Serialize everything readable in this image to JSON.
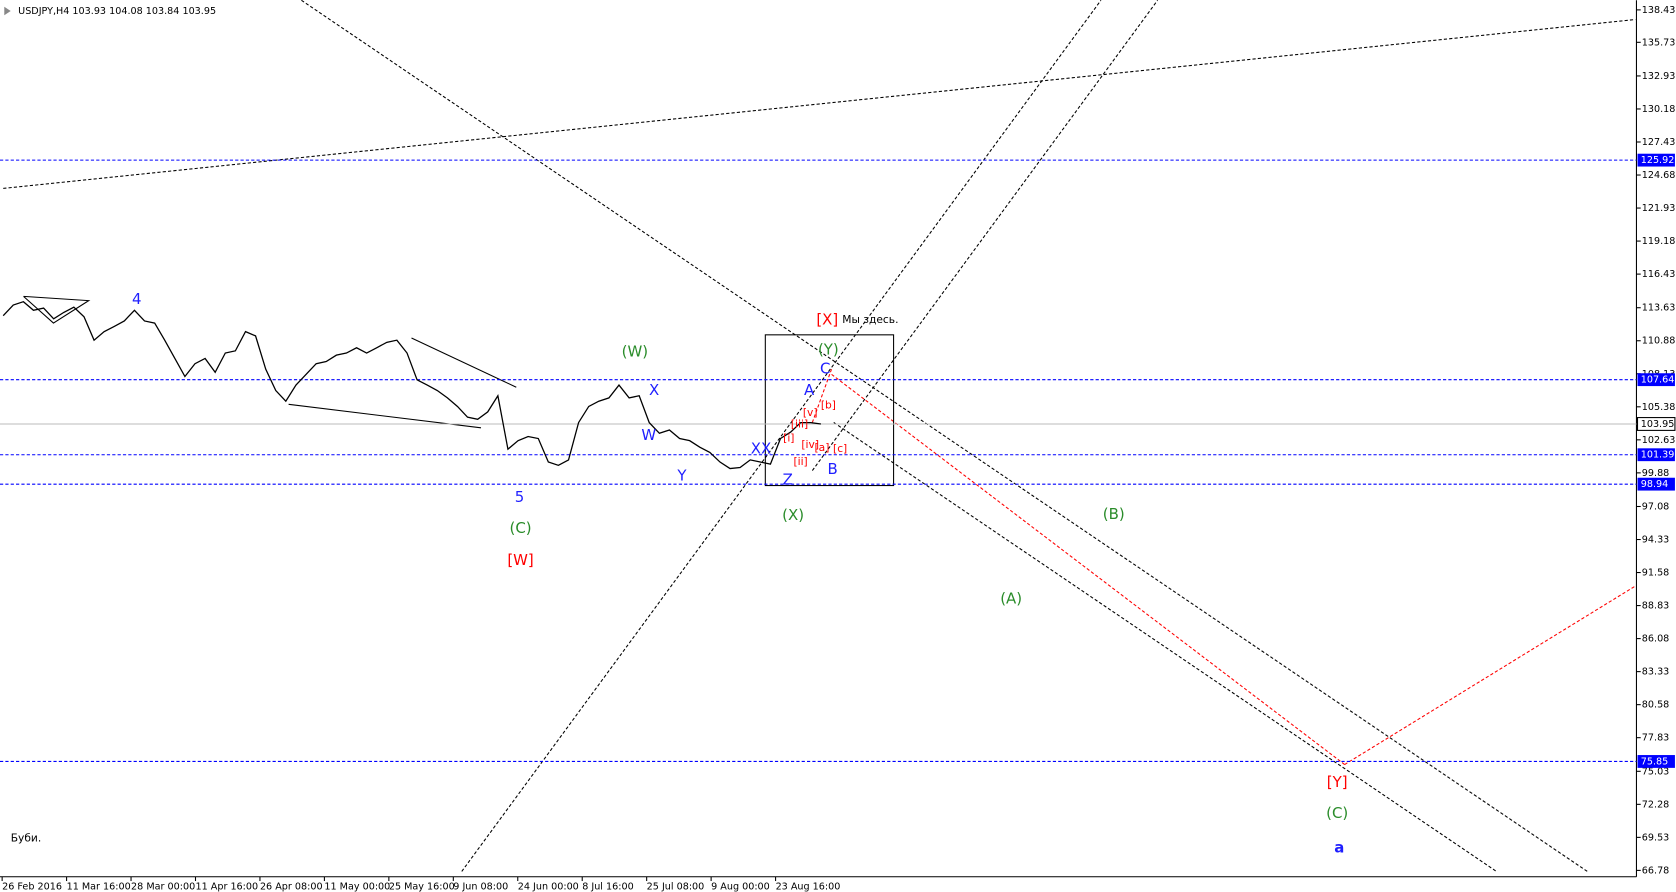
{
  "chart_data": {
    "type": "line",
    "title": "USDJPY,H4  103.93 104.08 103.84 103.95",
    "x_labels": [
      "26 Feb 2016",
      "11 Mar 16:00",
      "28 Mar 00:00",
      "11 Apr 16:00",
      "26 Apr 08:00",
      "11 May 00:00",
      "25 May 16:00",
      "9 Jun 08:00",
      "24 Jun 00:00",
      "8 Jul 16:00",
      "25 Jul 08:00",
      "9 Aug 00:00",
      "23 Aug 16:00"
    ],
    "series": [
      {
        "name": "USDJPY",
        "color": "#000000",
        "values": [
          112.97,
          113.86,
          114.13,
          113.42,
          113.6,
          112.71,
          113.24,
          113.68,
          112.88,
          110.93,
          111.64,
          112.08,
          112.53,
          113.42,
          112.53,
          112.35,
          110.93,
          109.41,
          107.9,
          108.97,
          109.41,
          108.26,
          109.86,
          110.04,
          111.64,
          111.28,
          108.52,
          106.74,
          105.85,
          107.19,
          108.08,
          108.97,
          109.15,
          109.68,
          109.86,
          110.3,
          109.86,
          110.3,
          110.75,
          110.93,
          109.86,
          107.63,
          107.19,
          106.74,
          106.12,
          105.41,
          104.52,
          104.34,
          104.96,
          106.3,
          101.85,
          102.56,
          102.91,
          102.74,
          100.78,
          100.51,
          100.96,
          104.07,
          105.41,
          105.85,
          106.12,
          107.19,
          106.12,
          106.3,
          104.07,
          103.18,
          103.45,
          102.74,
          102.56,
          102.02,
          101.58,
          100.78,
          100.24,
          100.33,
          100.96,
          100.78,
          100.6,
          102.74,
          103.27,
          104.07,
          104.07,
          103.95
        ]
      }
    ],
    "ylim": [
      66.25,
      139.23
    ],
    "yticks": [
      138.43,
      135.73,
      132.93,
      130.18,
      127.43,
      124.68,
      121.93,
      119.18,
      116.43,
      113.63,
      110.88,
      108.13,
      105.38,
      102.63,
      99.88,
      97.08,
      94.33,
      91.58,
      88.83,
      86.08,
      83.33,
      80.58,
      77.83,
      75.03,
      72.28,
      69.53,
      66.78
    ],
    "level_lines": [
      {
        "value": 125.92,
        "color": "#0000ff"
      },
      {
        "value": 107.64,
        "color": "#0000ff"
      },
      {
        "value": 101.39,
        "color": "#0000ff"
      },
      {
        "value": 98.94,
        "color": "#0000ff"
      },
      {
        "value": 75.85,
        "color": "#0000ff"
      }
    ],
    "current_price": 103.95,
    "annotations": [
      {
        "text": "4",
        "color": "#1f1fff"
      },
      {
        "text": "5",
        "color": "#1f1fff"
      },
      {
        "text": "(C)",
        "color": "#2a8c2a"
      },
      {
        "text": "[W]",
        "color": "#ff0000"
      },
      {
        "text": "(W)",
        "color": "#2a8c2a"
      },
      {
        "text": "X",
        "color": "#1f1fff"
      },
      {
        "text": "W",
        "color": "#1f1fff"
      },
      {
        "text": "Y",
        "color": "#1f1fff"
      },
      {
        "text": "XX",
        "color": "#1f1fff"
      },
      {
        "text": "Z",
        "color": "#1f1fff"
      },
      {
        "text": "(X)",
        "color": "#2a8c2a"
      },
      {
        "text": "A",
        "color": "#1f1fff"
      },
      {
        "text": "C",
        "color": "#1f1fff"
      },
      {
        "text": "B",
        "color": "#1f1fff"
      },
      {
        "text": "(Y)",
        "color": "#2a8c2a"
      },
      {
        "text": "[X]",
        "color": "#ff0000"
      },
      {
        "text": "Мы здесь.",
        "color": "#000000"
      },
      {
        "text": "(B)",
        "color": "#2a8c2a"
      },
      {
        "text": "(A)",
        "color": "#2a8c2a"
      },
      {
        "text": "[Y]",
        "color": "#ff0000"
      },
      {
        "text": "(C)",
        "color": "#2a8c2a"
      },
      {
        "text": "a",
        "color": "#1f1fff"
      },
      {
        "text": "Буби.",
        "color": "#000000"
      },
      {
        "text": "[i]",
        "color": "#ff0000"
      },
      {
        "text": "[ii]",
        "color": "#ff0000"
      },
      {
        "text": "[iii]",
        "color": "#ff0000"
      },
      {
        "text": "[iv]",
        "color": "#ff0000"
      },
      {
        "text": "[v]",
        "color": "#ff0000"
      },
      {
        "text": "[a]",
        "color": "#ff0000"
      },
      {
        "text": "[b]",
        "color": "#ff0000"
      },
      {
        "text": "[c]",
        "color": "#ff0000"
      }
    ]
  }
}
